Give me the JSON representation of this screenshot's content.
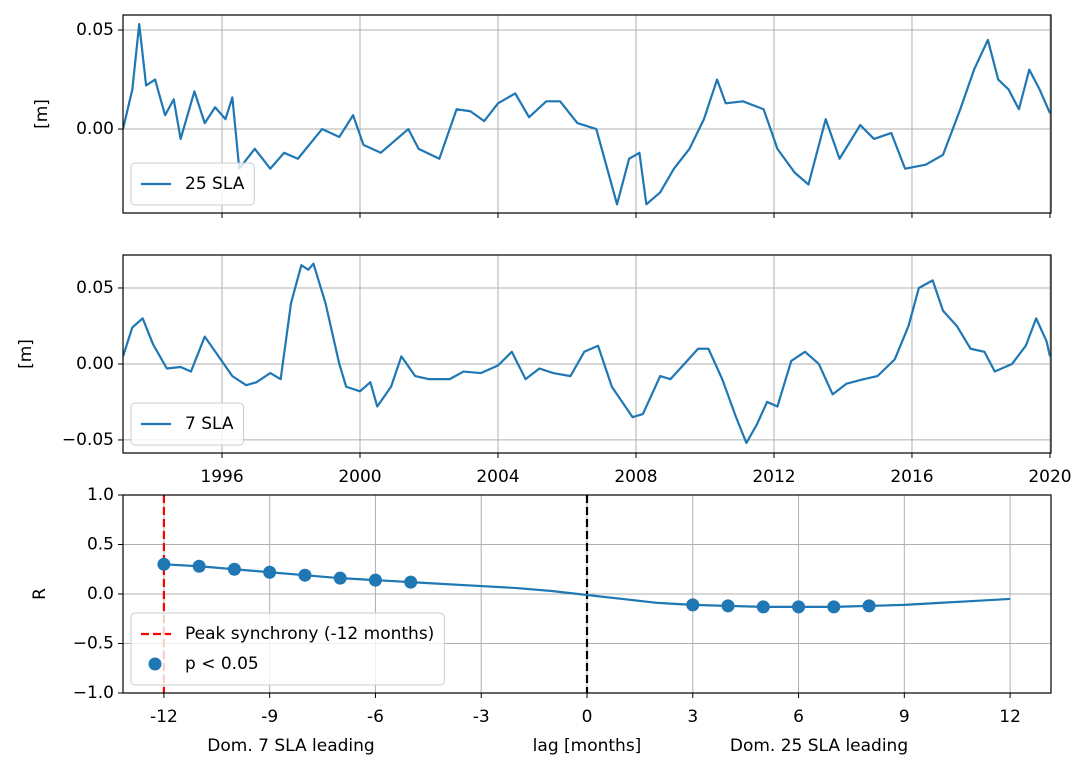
{
  "chart_data": [
    {
      "type": "line",
      "ylabel": "[m]",
      "legend": "lower left",
      "grid": true,
      "xlim": [
        1993.13,
        2020.03
      ],
      "ylim": [
        -0.0424,
        0.0576
      ],
      "yticks": [
        {
          "value": 0.0,
          "label": "0.00"
        },
        {
          "value": 0.05,
          "label": "0.05"
        }
      ],
      "x": [
        1993.13,
        1993.4,
        1993.6,
        1993.8,
        1994.06,
        1994.35,
        1994.6,
        1994.8,
        1995.2,
        1995.5,
        1995.8,
        1996.1,
        1996.3,
        1996.5,
        1996.95,
        1997.4,
        1997.8,
        1998.2,
        1998.9,
        1999.4,
        1999.8,
        2000.1,
        2000.6,
        2001.0,
        2001.4,
        2001.7,
        2002.3,
        2002.8,
        2003.2,
        2003.6,
        2004.0,
        2004.5,
        2004.9,
        2005.4,
        2005.8,
        2006.3,
        2006.85,
        2007.45,
        2007.8,
        2008.1,
        2008.3,
        2008.7,
        2009.1,
        2009.55,
        2009.97,
        2010.35,
        2010.6,
        2011.1,
        2011.7,
        2012.1,
        2012.6,
        2013.0,
        2013.5,
        2013.9,
        2014.5,
        2014.9,
        2015.4,
        2015.8,
        2016.4,
        2016.9,
        2017.4,
        2017.8,
        2018.2,
        2018.5,
        2018.8,
        2019.1,
        2019.4,
        2019.7,
        2020.0
      ],
      "series": [
        {
          "name": "25 SLA",
          "color": "#1f77b4",
          "values": [
            0.0,
            0.02,
            0.053,
            0.022,
            0.025,
            0.007,
            0.015,
            -0.005,
            0.019,
            0.003,
            0.011,
            0.005,
            0.016,
            -0.02,
            -0.01,
            -0.02,
            -0.012,
            -0.015,
            0.0,
            -0.004,
            0.007,
            -0.008,
            -0.012,
            -0.006,
            0.0,
            -0.01,
            -0.015,
            0.01,
            0.009,
            0.004,
            0.013,
            0.018,
            0.006,
            0.014,
            0.014,
            0.003,
            0.0,
            -0.038,
            -0.015,
            -0.012,
            -0.038,
            -0.032,
            -0.02,
            -0.01,
            0.005,
            0.025,
            0.013,
            0.014,
            0.01,
            -0.01,
            -0.022,
            -0.028,
            0.005,
            -0.015,
            0.002,
            -0.005,
            -0.002,
            -0.02,
            -0.018,
            -0.013,
            0.01,
            0.03,
            0.045,
            0.025,
            0.02,
            0.01,
            0.03,
            0.02,
            0.008
          ]
        }
      ]
    },
    {
      "type": "line",
      "ylabel": "[m]",
      "legend": "lower left",
      "grid": true,
      "xlim": [
        1993.13,
        2020.03
      ],
      "ylim": [
        -0.0586,
        0.0717
      ],
      "xticks": [
        1996,
        2000,
        2004,
        2008,
        2012,
        2016,
        2020
      ],
      "yticks": [
        {
          "value": -0.05,
          "label": "−0.05"
        },
        {
          "value": 0.0,
          "label": "0.00"
        },
        {
          "value": 0.05,
          "label": "0.05"
        }
      ],
      "x": [
        1993.13,
        1993.4,
        1993.7,
        1994.0,
        1994.4,
        1994.8,
        1995.1,
        1995.5,
        1995.9,
        1996.3,
        1996.7,
        1997.0,
        1997.4,
        1997.7,
        1998.0,
        1998.3,
        1998.5,
        1998.65,
        1999.0,
        1999.4,
        1999.6,
        2000.0,
        2000.3,
        2000.5,
        2000.9,
        2001.2,
        2001.6,
        2002.0,
        2002.6,
        2003.0,
        2003.5,
        2004.0,
        2004.4,
        2004.8,
        2005.2,
        2005.6,
        2006.1,
        2006.5,
        2006.9,
        2007.3,
        2007.9,
        2008.2,
        2008.7,
        2009.0,
        2009.4,
        2009.8,
        2010.1,
        2010.5,
        2010.9,
        2011.2,
        2011.5,
        2011.8,
        2012.1,
        2012.5,
        2012.9,
        2013.3,
        2013.7,
        2014.1,
        2014.6,
        2015.0,
        2015.5,
        2015.9,
        2016.2,
        2016.6,
        2016.9,
        2017.3,
        2017.7,
        2018.1,
        2018.4,
        2018.9,
        2019.3,
        2019.6,
        2019.9,
        2020.0
      ],
      "series": [
        {
          "name": "7 SLA",
          "color": "#1f77b4",
          "values": [
            0.005,
            0.024,
            0.03,
            0.013,
            -0.003,
            -0.002,
            -0.005,
            0.018,
            0.005,
            -0.008,
            -0.014,
            -0.012,
            -0.006,
            -0.01,
            0.04,
            0.065,
            0.062,
            0.066,
            0.04,
            0.0,
            -0.015,
            -0.018,
            -0.012,
            -0.028,
            -0.015,
            0.005,
            -0.008,
            -0.01,
            -0.01,
            -0.005,
            -0.006,
            -0.001,
            0.008,
            -0.01,
            -0.003,
            -0.006,
            -0.008,
            0.008,
            0.012,
            -0.015,
            -0.035,
            -0.033,
            -0.008,
            -0.01,
            0.0,
            0.01,
            0.01,
            -0.01,
            -0.035,
            -0.052,
            -0.04,
            -0.025,
            -0.028,
            0.002,
            0.008,
            0.0,
            -0.02,
            -0.013,
            -0.01,
            -0.008,
            0.003,
            0.025,
            0.05,
            0.055,
            0.035,
            0.025,
            0.01,
            0.008,
            -0.005,
            0.0,
            0.012,
            0.03,
            0.015,
            0.005
          ]
        }
      ]
    },
    {
      "type": "line",
      "ylabel": "R",
      "xlabel": "lag [months]",
      "legend": "lower left",
      "grid": true,
      "annotations": [
        "Dom. 7 SLA leading",
        "Dom. 25 SLA leading"
      ],
      "xlim": [
        -13.16,
        13.16
      ],
      "ylim": [
        -1.0,
        1.0
      ],
      "xticks": [
        -12,
        -9,
        -6,
        -3,
        0,
        3,
        6,
        9,
        12
      ],
      "yticks": [
        {
          "value": -1.0,
          "label": "−1.0"
        },
        {
          "value": -0.5,
          "label": "−0.5"
        },
        {
          "value": 0.0,
          "label": "0.0"
        },
        {
          "value": 0.5,
          "label": "0.5"
        },
        {
          "value": 1.0,
          "label": "1.0"
        }
      ],
      "x": [
        -12,
        -11,
        -10,
        -9,
        -8,
        -7,
        -6,
        -5,
        -4,
        -3,
        -2,
        -1,
        0,
        1,
        2,
        3,
        4,
        5,
        6,
        7,
        8,
        9,
        10,
        11,
        12
      ],
      "series": [
        {
          "type": "line",
          "color": "#1f77b4",
          "values": [
            0.3,
            0.28,
            0.25,
            0.22,
            0.19,
            0.16,
            0.14,
            0.12,
            0.1,
            0.08,
            0.06,
            0.03,
            -0.01,
            -0.05,
            -0.09,
            -0.11,
            -0.12,
            -0.13,
            -0.13,
            -0.13,
            -0.12,
            -0.11,
            -0.09,
            -0.07,
            -0.05
          ]
        },
        {
          "type": "scatter",
          "name": "p < 0.05",
          "color": "#1f77b4",
          "x": [
            -12,
            -11,
            -10,
            -9,
            -8,
            -7,
            -6,
            -5,
            3,
            4,
            5,
            6,
            7,
            8
          ],
          "values": [
            0.3,
            0.28,
            0.25,
            0.22,
            0.19,
            0.16,
            0.14,
            0.12,
            -0.11,
            -0.12,
            -0.13,
            -0.13,
            -0.13,
            -0.12
          ]
        }
      ],
      "vlines": [
        {
          "x": -12,
          "color": "#ff0000",
          "name": "Peak synchrony (-12 months)"
        },
        {
          "x": 0,
          "color": "#000000"
        }
      ]
    }
  ]
}
